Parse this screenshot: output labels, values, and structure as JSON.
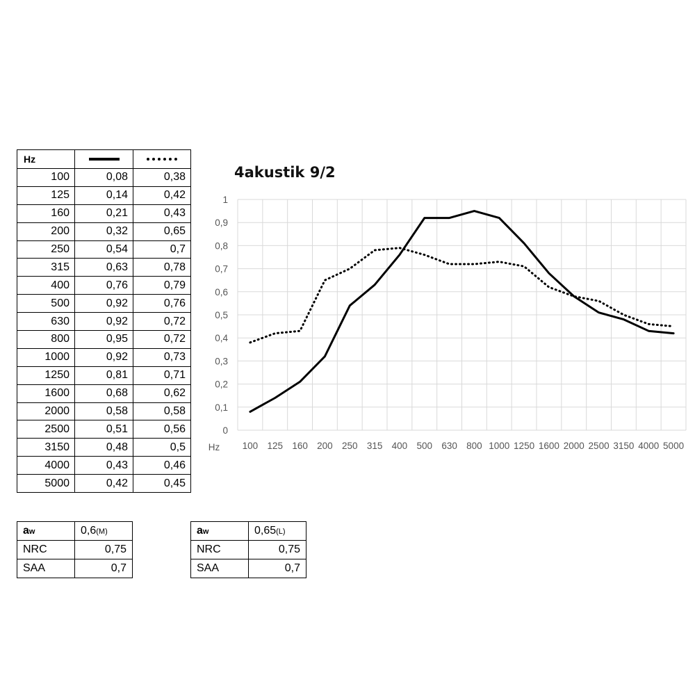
{
  "table": {
    "header": "Hz",
    "rows": [
      {
        "hz": "100",
        "m": "0,08",
        "l": "0,38"
      },
      {
        "hz": "125",
        "m": "0,14",
        "l": "0,42"
      },
      {
        "hz": "160",
        "m": "0,21",
        "l": "0,43"
      },
      {
        "hz": "200",
        "m": "0,32",
        "l": "0,65"
      },
      {
        "hz": "250",
        "m": "0,54",
        "l": "0,7"
      },
      {
        "hz": "315",
        "m": "0,63",
        "l": "0,78"
      },
      {
        "hz": "400",
        "m": "0,76",
        "l": "0,79"
      },
      {
        "hz": "500",
        "m": "0,92",
        "l": "0,76"
      },
      {
        "hz": "630",
        "m": "0,92",
        "l": "0,72"
      },
      {
        "hz": "800",
        "m": "0,95",
        "l": "0,72"
      },
      {
        "hz": "1000",
        "m": "0,92",
        "l": "0,73"
      },
      {
        "hz": "1250",
        "m": "0,81",
        "l": "0,71"
      },
      {
        "hz": "1600",
        "m": "0,68",
        "l": "0,62"
      },
      {
        "hz": "2000",
        "m": "0,58",
        "l": "0,58"
      },
      {
        "hz": "2500",
        "m": "0,51",
        "l": "0,56"
      },
      {
        "hz": "3150",
        "m": "0,48",
        "l": "0,5"
      },
      {
        "hz": "4000",
        "m": "0,43",
        "l": "0,46"
      },
      {
        "hz": "5000",
        "m": "0,42",
        "l": "0,45"
      }
    ]
  },
  "ratings_m": {
    "aw_letter": "a",
    "aw_sub": "w",
    "aw_value": "0,6",
    "aw_suffix": "(M)",
    "nrc_label": "NRC",
    "nrc_value": "0,75",
    "saa_label": "SAA",
    "saa_value": "0,7"
  },
  "ratings_l": {
    "aw_letter": "a",
    "aw_sub": "w",
    "aw_value": "0,65",
    "aw_suffix": "(L)",
    "nrc_label": "NRC",
    "nrc_value": "0,75",
    "saa_label": "SAA",
    "saa_value": "0,7"
  },
  "chart_data": {
    "type": "line",
    "title": "4akustik 9/2",
    "xlabel": "Hz",
    "ylabel": "",
    "ylim": [
      0,
      1
    ],
    "yticks": [
      "0",
      "0,1",
      "0,2",
      "0,3",
      "0,4",
      "0,5",
      "0,6",
      "0,7",
      "0,8",
      "0,9",
      "1"
    ],
    "grid": true,
    "categories": [
      "100",
      "125",
      "160",
      "200",
      "250",
      "315",
      "400",
      "500",
      "630",
      "800",
      "1000",
      "1250",
      "1600",
      "2000",
      "2500",
      "3150",
      "4000",
      "5000"
    ],
    "series": [
      {
        "style": "solid",
        "color": "#000000",
        "values": [
          0.08,
          0.14,
          0.21,
          0.32,
          0.54,
          0.63,
          0.76,
          0.92,
          0.92,
          0.95,
          0.92,
          0.81,
          0.68,
          0.58,
          0.51,
          0.48,
          0.43,
          0.42
        ]
      },
      {
        "style": "dotted",
        "color": "#000000",
        "values": [
          0.38,
          0.42,
          0.43,
          0.65,
          0.7,
          0.78,
          0.79,
          0.76,
          0.72,
          0.72,
          0.73,
          0.71,
          0.62,
          0.58,
          0.56,
          0.5,
          0.46,
          0.45
        ]
      }
    ]
  }
}
